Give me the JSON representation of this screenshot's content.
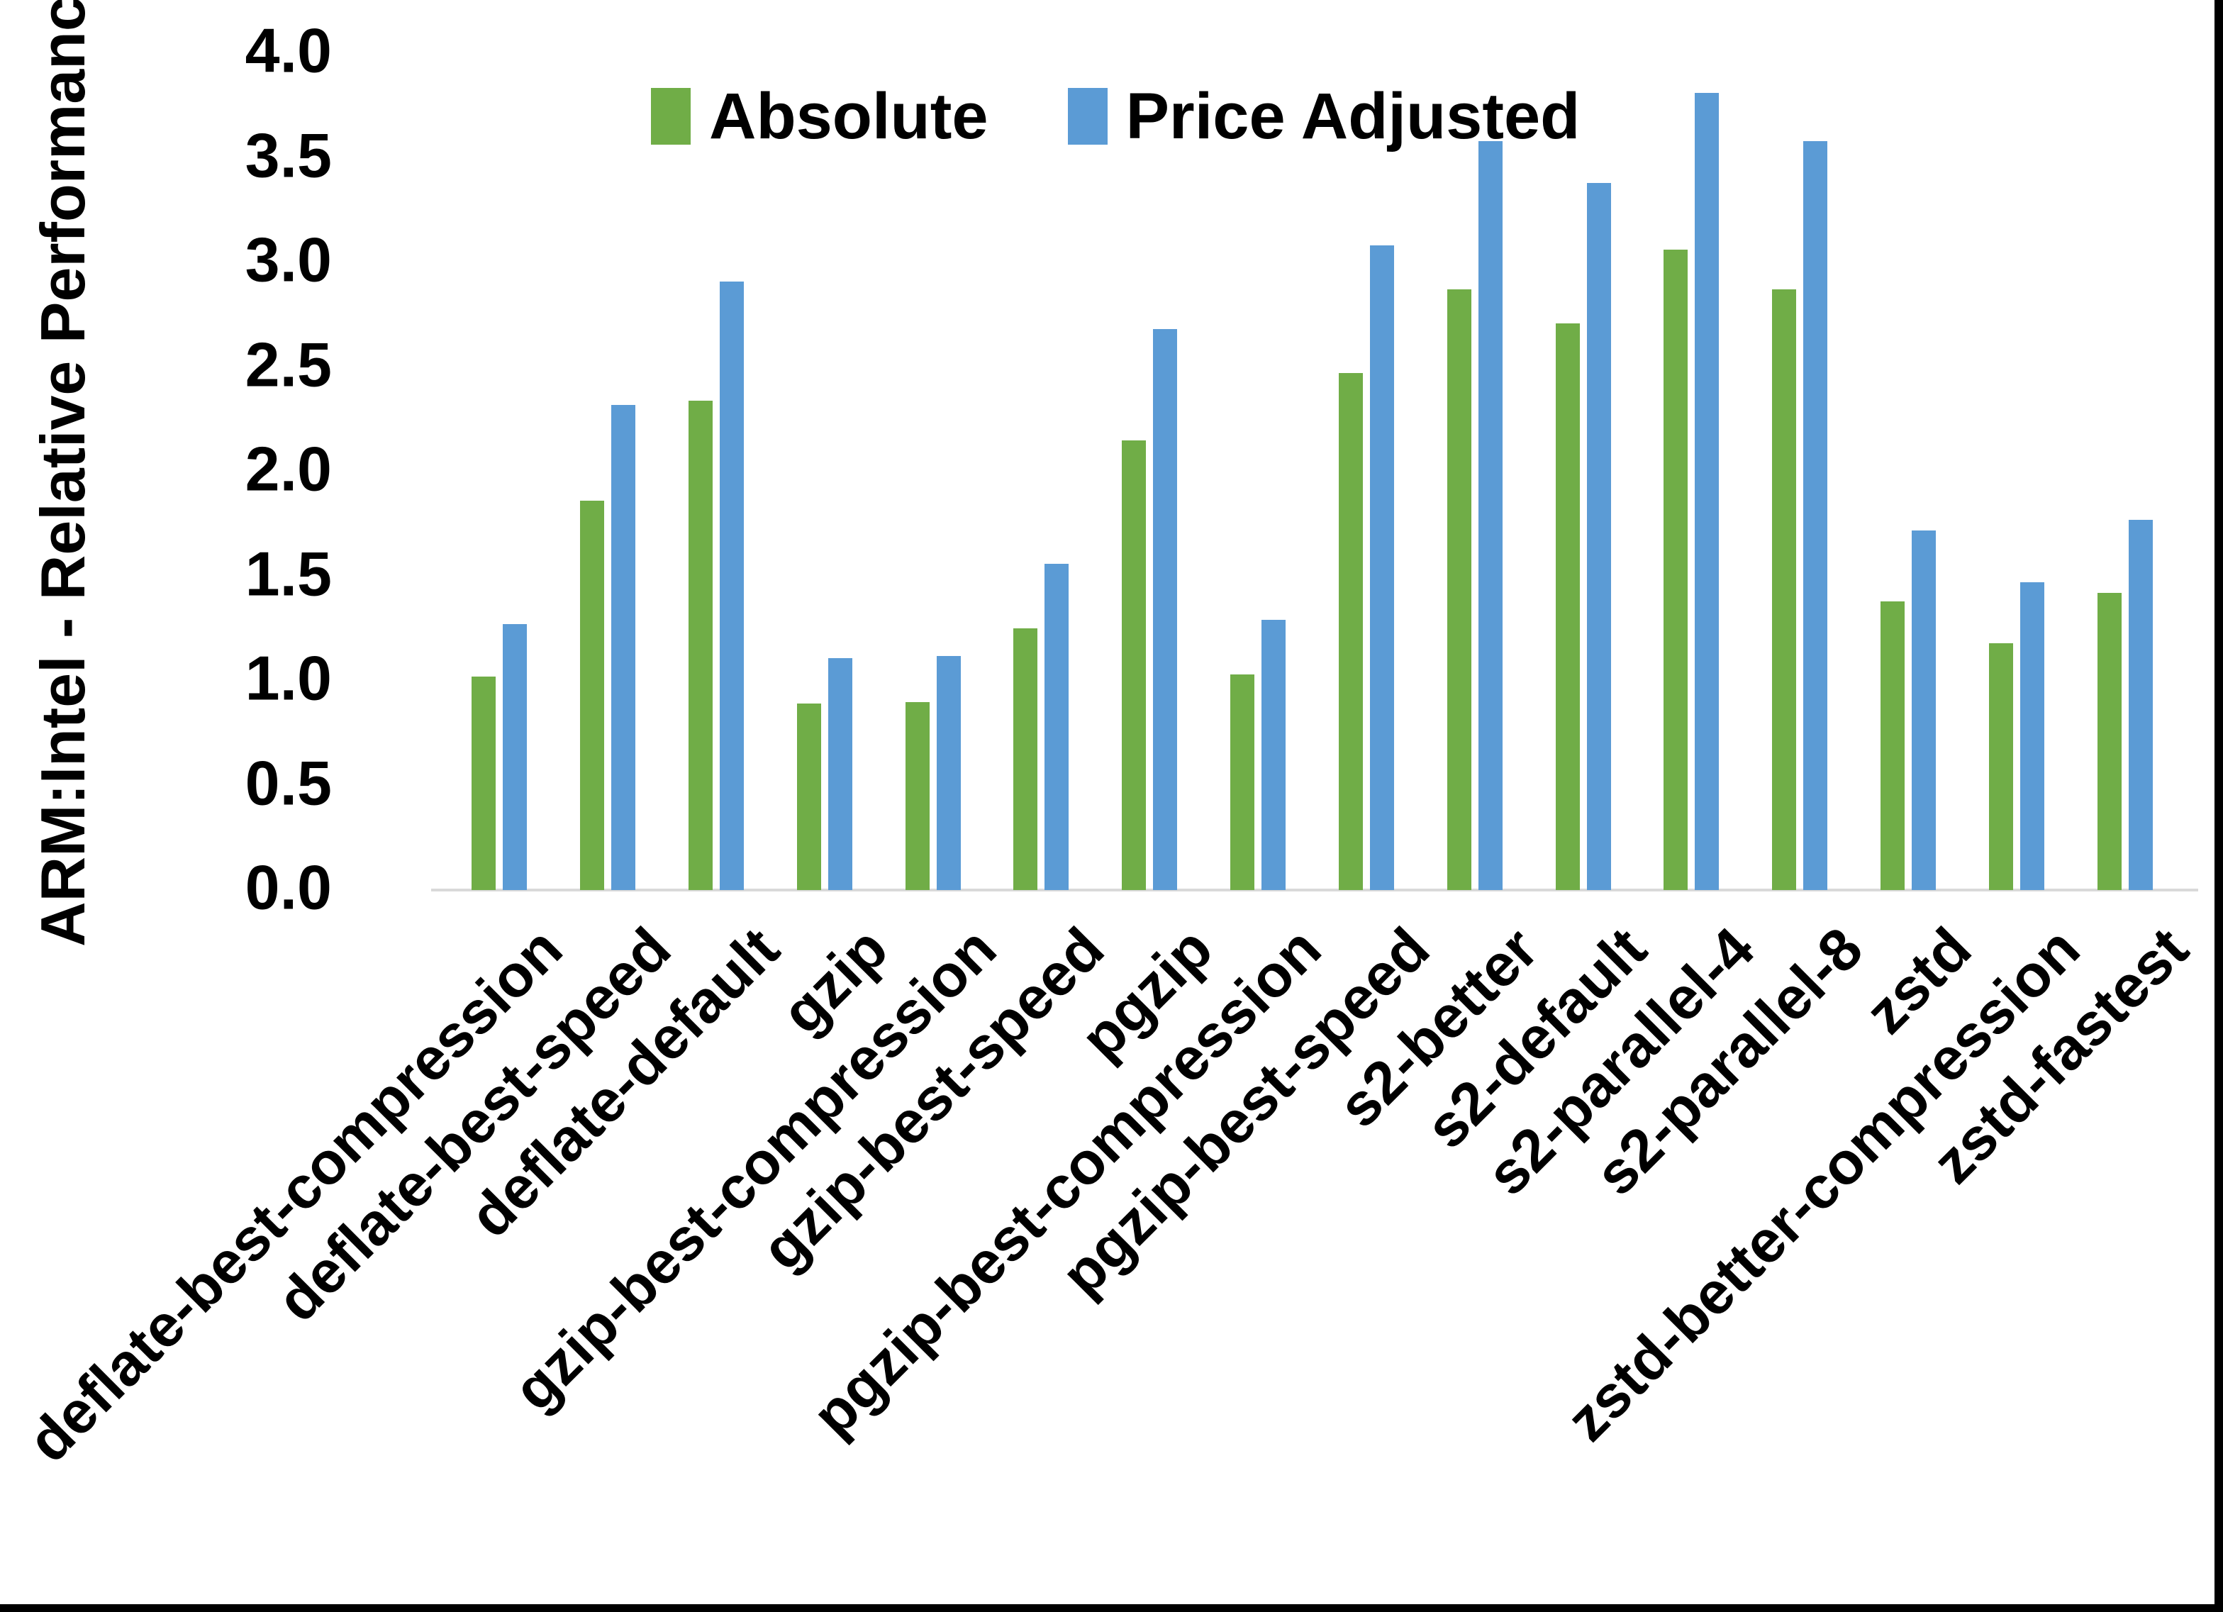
{
  "y_axis": {
    "title": "ARM:Intel - Relative Performance",
    "tick_labels": [
      "4.0",
      "3.5",
      "3.0",
      "2.5",
      "2.0",
      "1.5",
      "1.0",
      "0.5",
      "0.0"
    ]
  },
  "legend": {
    "position": "top-center",
    "items": [
      {
        "label": "Absolute",
        "color": "#70AD47"
      },
      {
        "label": "Price Adjusted",
        "color": "#5B9BD5"
      }
    ]
  },
  "colors": {
    "absolute_series": "#70AD47",
    "price_adjusted_series": "#5B9BD5",
    "axis_line": "#D9D9D9",
    "text": "#000000",
    "background": "#FFFFFF",
    "edge_border": "#000000"
  },
  "chart_data": {
    "type": "bar",
    "title": "",
    "xlabel": "",
    "ylabel": "ARM:Intel - Relative Performance",
    "ylim": [
      0,
      4
    ],
    "ytick_step": 0.5,
    "grid": false,
    "legend_position": "top-center",
    "categories": [
      "deflate-best-compression",
      "deflate-best-speed",
      "deflate-default",
      "gzip",
      "gzip-best-compression",
      "gzip-best-speed",
      "pgzip",
      "pgzip-best-compression",
      "pgzip-best-speed",
      "s2-better",
      "s2-default",
      "s2-parallel-4",
      "s2-parallel-8",
      "zstd",
      "zstd-better-compression",
      "zstd-fastest"
    ],
    "series": [
      {
        "name": "Absolute",
        "color": "#70AD47",
        "values": [
          1.02,
          1.86,
          2.34,
          0.89,
          0.9,
          1.25,
          2.15,
          1.03,
          2.47,
          2.87,
          2.71,
          3.06,
          2.87,
          1.38,
          1.18,
          1.42
        ]
      },
      {
        "name": "Price Adjusted",
        "color": "#5B9BD5",
        "values": [
          1.27,
          2.32,
          2.91,
          1.11,
          1.12,
          1.56,
          2.68,
          1.29,
          3.08,
          3.58,
          3.38,
          3.81,
          3.58,
          1.72,
          1.47,
          1.77
        ]
      }
    ]
  }
}
